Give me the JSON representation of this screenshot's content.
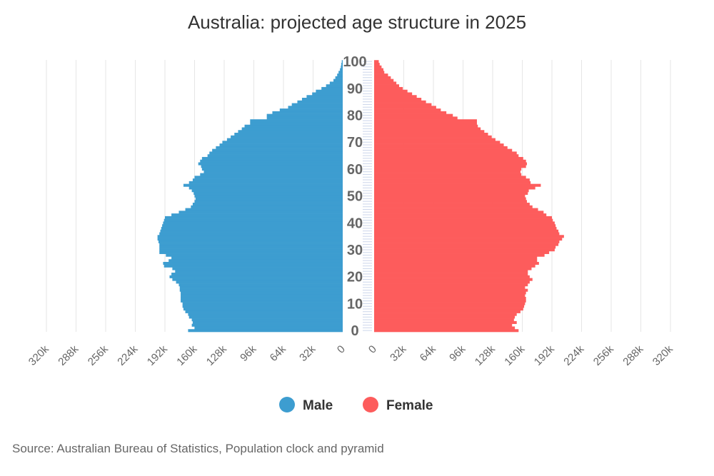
{
  "chart_data": {
    "type": "bar",
    "subtype": "population-pyramid",
    "title": "Australia: projected age structure in 2025",
    "source": "Source: Australian Bureau of Statistics, Population clock and pyramid",
    "age_labels": [
      "0",
      "10",
      "20",
      "30",
      "40",
      "50",
      "60",
      "70",
      "80",
      "90",
      "100"
    ],
    "x_ticks": [
      "0",
      "32k",
      "64k",
      "96k",
      "128k",
      "160k",
      "192k",
      "224k",
      "256k",
      "288k",
      "320k"
    ],
    "xlim_thousands": [
      0,
      320
    ],
    "grid": true,
    "legend_position": "bottom",
    "categories_age": "0..100",
    "series": [
      {
        "name": "Male",
        "color": "#3d9dd0",
        "values_thousands": [
          167,
          160,
          163,
          162,
          163,
          166,
          167,
          170,
          172,
          173,
          173,
          175,
          175,
          175,
          175,
          176,
          176,
          177,
          180,
          184,
          187,
          185,
          181,
          184,
          193,
          194,
          188,
          185,
          191,
          198,
          198,
          198,
          198,
          199,
          200,
          200,
          198,
          197,
          196,
          195,
          194,
          193,
          192,
          185,
          177,
          170,
          164,
          162,
          160,
          159,
          160,
          161,
          163,
          166,
          172,
          166,
          162,
          160,
          154,
          150,
          152,
          153,
          156,
          154,
          152,
          146,
          144,
          141,
          137,
          133,
          130,
          125,
          121,
          117,
          113,
          109,
          106,
          100,
          100,
          82,
          82,
          76,
          68,
          59,
          55,
          49,
          44,
          39,
          33,
          29,
          23,
          18,
          14,
          10,
          8,
          6,
          4.5,
          3,
          2,
          1.5,
          1
        ]
      },
      {
        "name": "Female",
        "color": "#fd5c5c",
        "values_thousands": [
          156,
          152,
          149,
          154,
          151,
          152,
          154,
          158,
          161,
          162,
          163,
          164,
          164,
          163,
          164,
          166,
          163,
          166,
          168,
          171,
          168,
          166,
          166,
          170,
          174,
          178,
          176,
          176,
          184,
          189,
          195,
          196,
          199,
          200,
          203,
          205,
          200,
          199,
          197,
          196,
          195,
          193,
          192,
          186,
          183,
          177,
          171,
          168,
          165,
          164,
          163,
          166,
          167,
          174,
          180,
          169,
          168,
          164,
          159,
          158,
          159,
          164,
          165,
          164,
          161,
          156,
          154,
          149,
          144,
          140,
          136,
          131,
          127,
          123,
          119,
          115,
          112,
          111,
          111,
          90,
          85,
          78,
          72,
          67,
          62,
          56,
          51,
          46,
          41,
          36,
          31,
          27,
          24,
          21,
          18,
          15,
          11,
          10,
          8,
          6,
          5
        ]
      }
    ]
  }
}
